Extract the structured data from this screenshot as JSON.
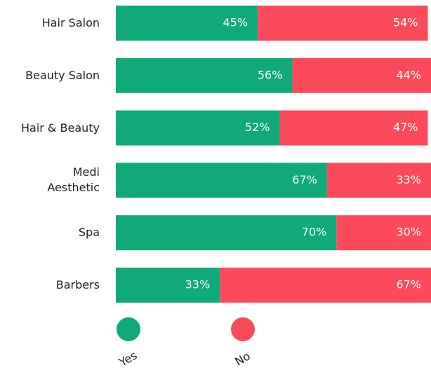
{
  "chart_data": {
    "type": "stacked-bar-horizontal",
    "categories": [
      "Hair Salon",
      "Beauty Salon",
      "Hair & Beauty",
      "Medi\nAesthetic",
      "Spa",
      "Barbers"
    ],
    "series": [
      {
        "name": "Yes",
        "color": "#10aa7a",
        "values": [
          45,
          56,
          52,
          67,
          70,
          33
        ],
        "value_labels": [
          "45%",
          "56%",
          "52%",
          "67%",
          "70%",
          "33%"
        ]
      },
      {
        "name": "No",
        "color": "#fd4a5a",
        "values": [
          54,
          44,
          47,
          33,
          30,
          67
        ],
        "value_labels": [
          "54%",
          "44%",
          "47%",
          "33%",
          "30%",
          "67%"
        ]
      }
    ],
    "xlim": [
      0,
      100
    ]
  }
}
